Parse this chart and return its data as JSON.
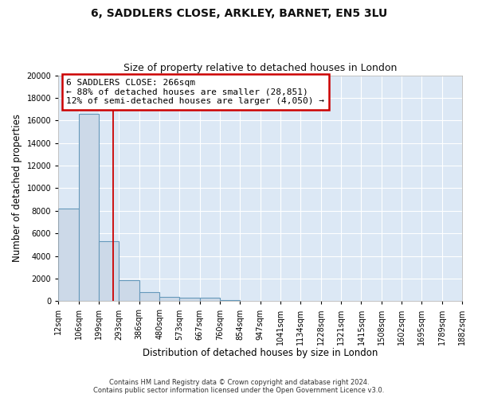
{
  "title": "6, SADDLERS CLOSE, ARKLEY, BARNET, EN5 3LU",
  "subtitle": "Size of property relative to detached houses in London",
  "xlabel": "Distribution of detached houses by size in London",
  "ylabel": "Number of detached properties",
  "bins": [
    "12sqm",
    "106sqm",
    "199sqm",
    "293sqm",
    "386sqm",
    "480sqm",
    "573sqm",
    "667sqm",
    "760sqm",
    "854sqm",
    "947sqm",
    "1041sqm",
    "1134sqm",
    "1228sqm",
    "1321sqm",
    "1415sqm",
    "1508sqm",
    "1602sqm",
    "1695sqm",
    "1789sqm",
    "1882sqm"
  ],
  "bin_edges": [
    12,
    106,
    199,
    293,
    386,
    480,
    573,
    667,
    760,
    854,
    947,
    1041,
    1134,
    1228,
    1321,
    1415,
    1508,
    1602,
    1695,
    1789,
    1882
  ],
  "bar_heights": [
    8200,
    16600,
    5300,
    1850,
    800,
    350,
    300,
    300,
    100,
    0,
    0,
    0,
    0,
    0,
    0,
    0,
    0,
    0,
    0,
    0
  ],
  "bar_color": "#ccd9e8",
  "bar_edge_color": "#6699bb",
  "vline_x": 266,
  "vline_color": "#cc0000",
  "ylim": [
    0,
    20000
  ],
  "yticks": [
    0,
    2000,
    4000,
    6000,
    8000,
    10000,
    12000,
    14000,
    16000,
    18000,
    20000
  ],
  "annotation_line1": "6 SADDLERS CLOSE: 266sqm",
  "annotation_line2": "← 88% of detached houses are smaller (28,851)",
  "annotation_line3": "12% of semi-detached houses are larger (4,050) →",
  "annotation_box_color": "#ffffff",
  "annotation_box_edge_color": "#cc0000",
  "bg_color": "#dce8f5",
  "fig_bg_color": "#ffffff",
  "grid_color": "#ffffff",
  "footer_line1": "Contains HM Land Registry data © Crown copyright and database right 2024.",
  "footer_line2": "Contains public sector information licensed under the Open Government Licence v3.0.",
  "title_fontsize": 10,
  "subtitle_fontsize": 9,
  "axis_label_fontsize": 8.5,
  "tick_fontsize": 7,
  "annotation_fontsize": 8
}
